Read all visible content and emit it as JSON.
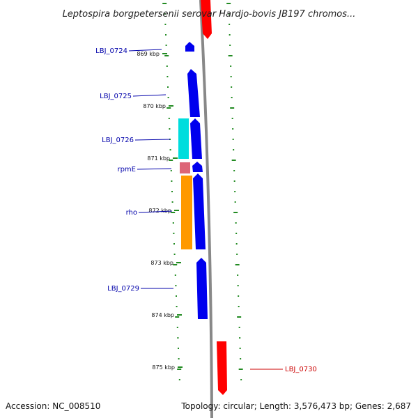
{
  "title": "Leptospira borgpetersenii serovar Hardjo-bovis JB197 chromos...",
  "footer": {
    "accession": "Accession: NC_008510",
    "summary": "Topology: circular; Length: 3,576,473 bp; Genes: 2,687"
  },
  "ticks": [
    "869 kbp",
    "870 kbp",
    "871 kbp",
    "872 kbp",
    "873 kbp",
    "874 kbp",
    "875 kbp"
  ],
  "genes": [
    {
      "label": "LBJ_0724",
      "strand": "+",
      "color": "#0000dd"
    },
    {
      "label": "LBJ_0725",
      "strand": "+",
      "color": "#0000dd"
    },
    {
      "label": "LBJ_0726",
      "strand": "+",
      "color": "#0000dd"
    },
    {
      "label": "rpmE",
      "strand": "+",
      "color": "#0000dd"
    },
    {
      "label": "rho",
      "strand": "+",
      "color": "#0000dd"
    },
    {
      "label": "LBJ_0729",
      "strand": "+",
      "color": "#0000dd"
    },
    {
      "label": "LBJ_0730",
      "strand": "-",
      "color": "#dd0000"
    }
  ],
  "colors": {
    "backbone": "#888888",
    "ticks": "#228b22",
    "forward_gene": "#0000ee",
    "reverse_gene": "#ff0000",
    "cog_cyan": "#00dddd",
    "cog_pink": "#dd6677",
    "cog_orange": "#ff9900",
    "label_blue": "#0000aa",
    "label_red": "#cc0000"
  }
}
